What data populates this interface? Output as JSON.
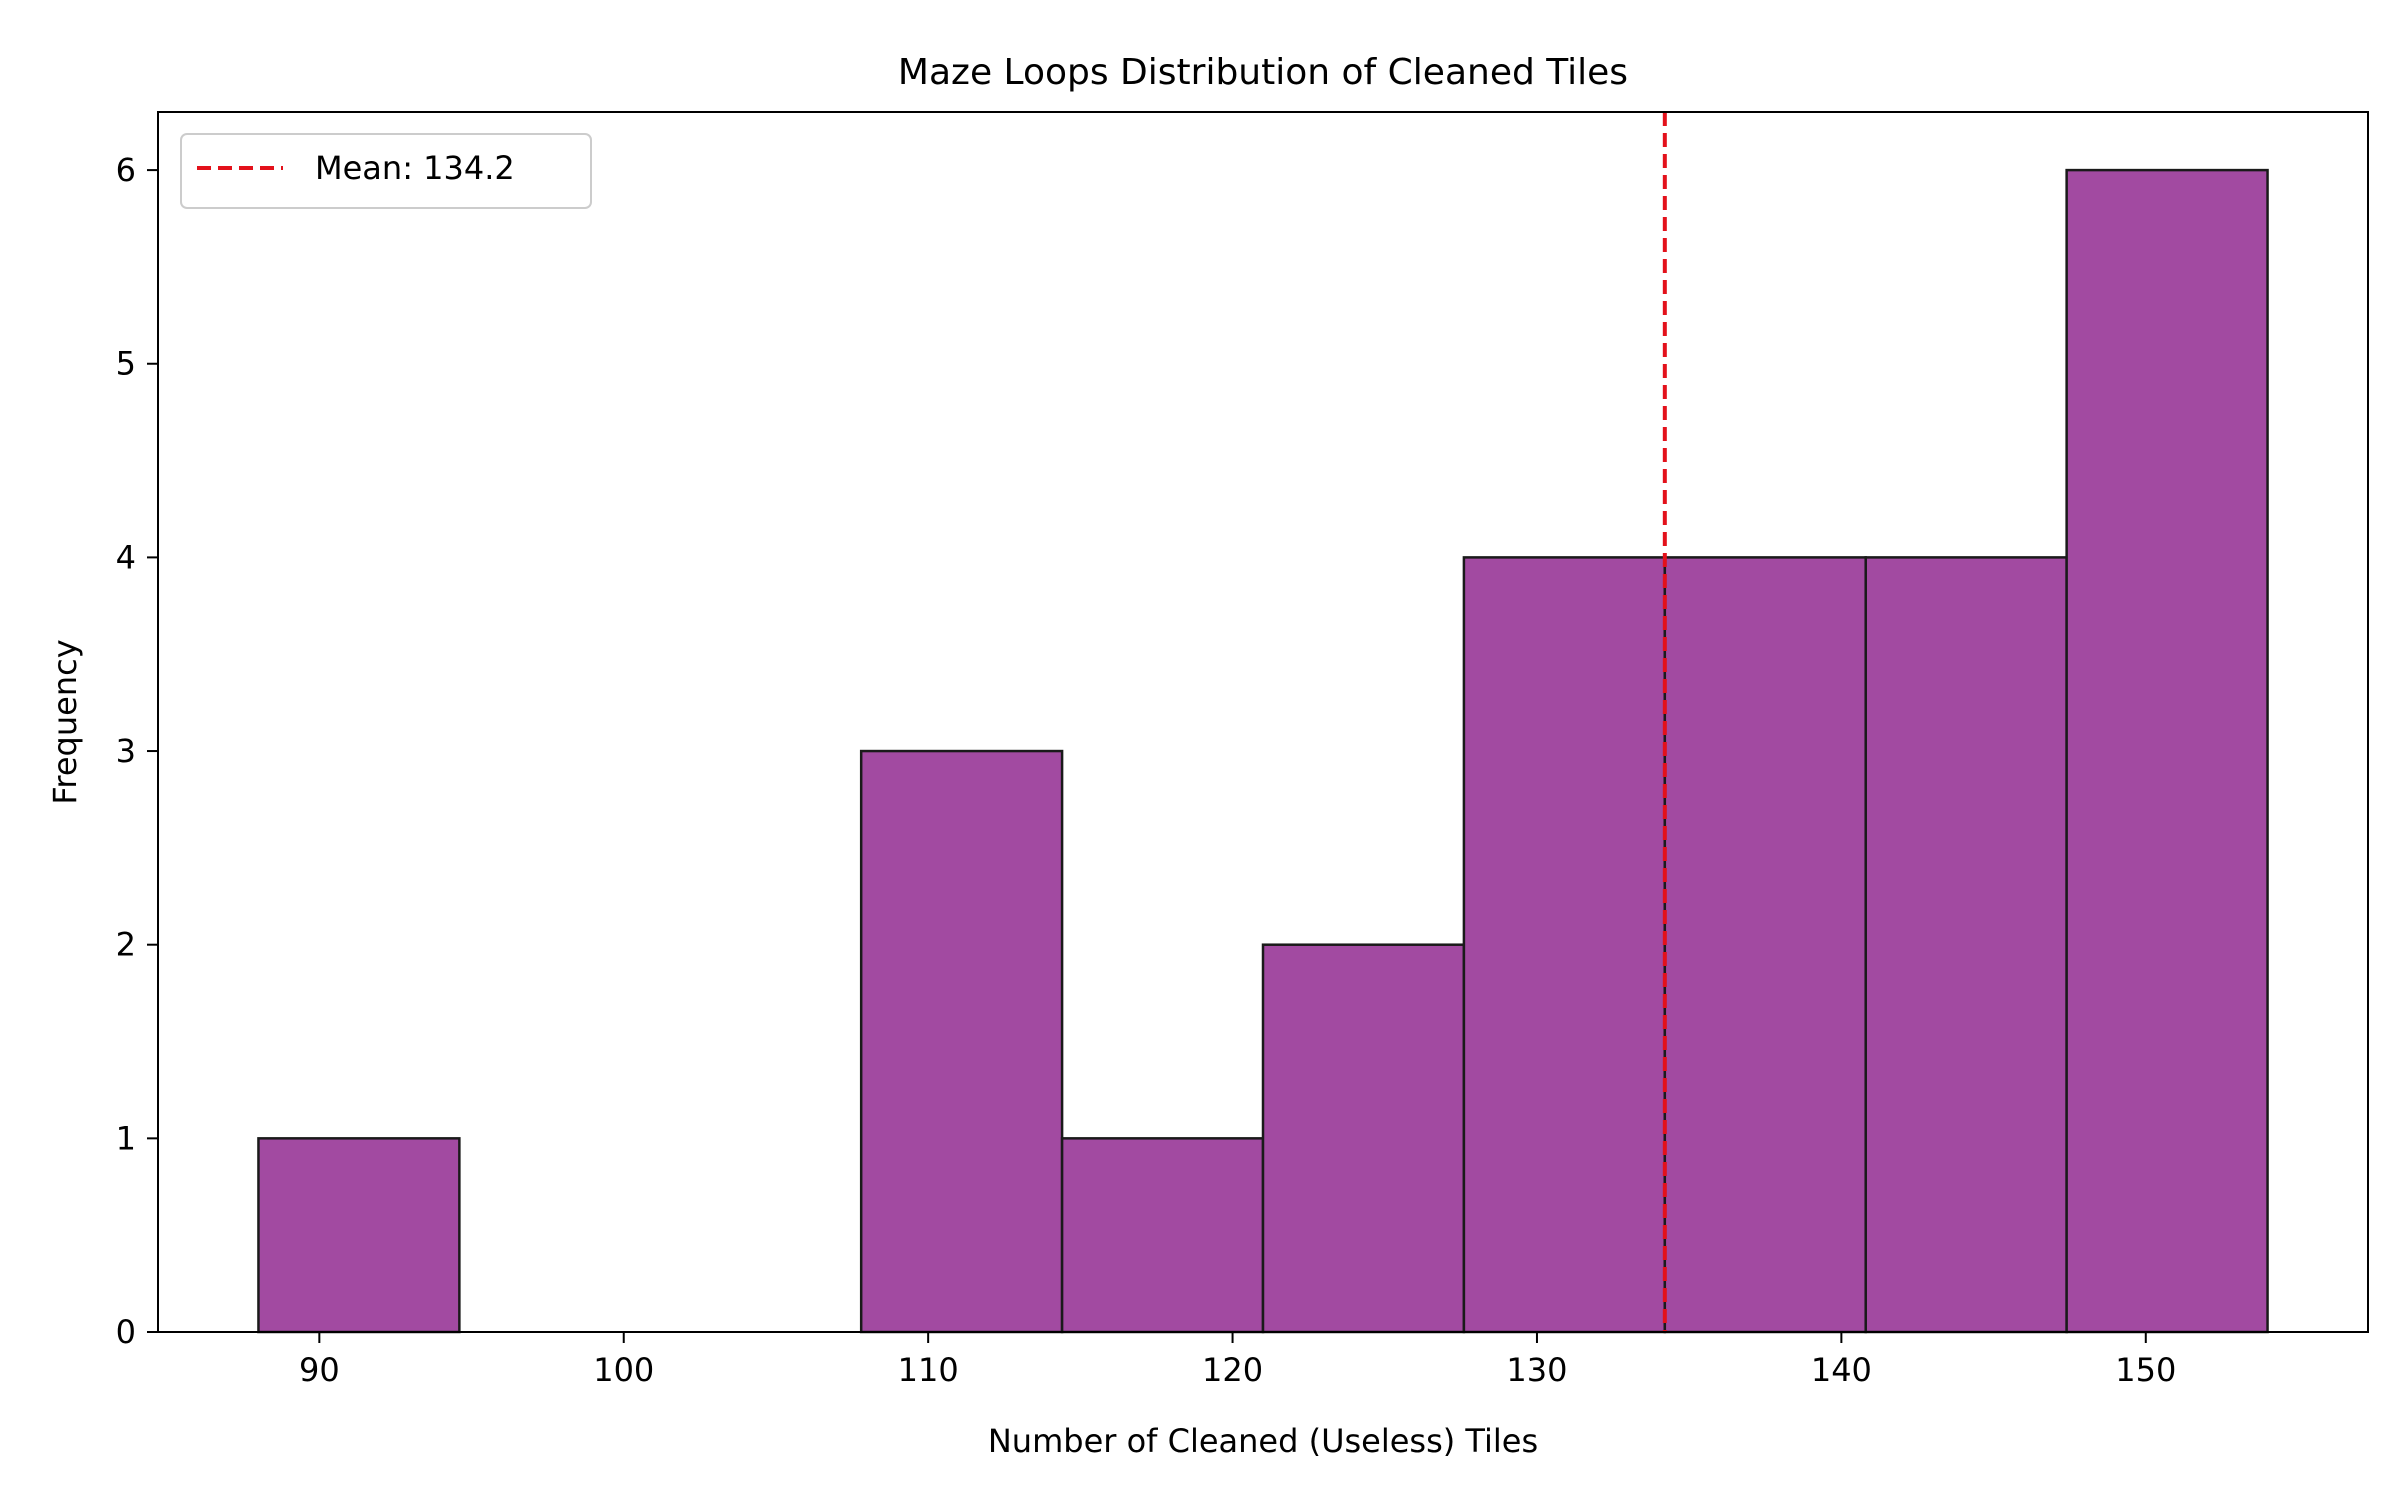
{
  "chart_data": {
    "type": "bar",
    "subtype": "histogram",
    "title": "Maze Loops Distribution of Cleaned Tiles",
    "xlabel": "Number of Cleaned (Useless) Tiles",
    "ylabel": "Frequency",
    "xlim": [
      84.7,
      157.3
    ],
    "ylim": [
      0,
      6.3
    ],
    "grid": false,
    "legend_position": "top-left",
    "x_ticks": [
      90,
      100,
      110,
      120,
      130,
      140,
      150
    ],
    "y_ticks": [
      0,
      1,
      2,
      3,
      4,
      5,
      6
    ],
    "bin_edges": [
      88.0,
      94.6,
      101.2,
      107.8,
      114.4,
      121.0,
      127.6,
      134.2,
      140.8,
      147.4,
      154.0
    ],
    "values": [
      1,
      0,
      0,
      3,
      1,
      2,
      4,
      4,
      4,
      6
    ],
    "bar_color": "#a24aa1",
    "bar_edge_color": "#1a1a1a",
    "mean_line": {
      "value": 134.2,
      "label": "Mean: 134.2",
      "color": "#e3111b",
      "style": "dashed"
    }
  }
}
